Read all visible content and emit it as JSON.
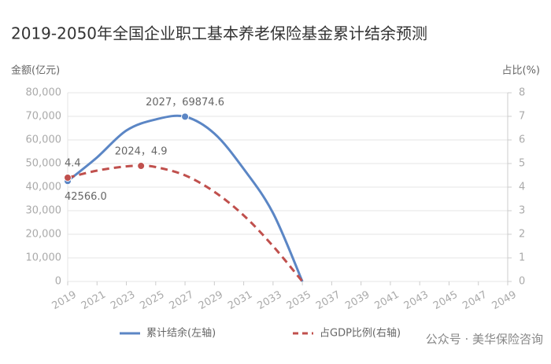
{
  "chart_data": {
    "type": "line",
    "title": "2019-2050年全国企业职工基本养老保险基金累计结余预测",
    "ylabel": "金额(亿元)",
    "y2label": "占比(%)",
    "xlim": [
      2019,
      2049
    ],
    "xticks": [
      2019,
      2021,
      2023,
      2025,
      2027,
      2029,
      2031,
      2033,
      2035,
      2037,
      2039,
      2041,
      2043,
      2045,
      2047,
      2049
    ],
    "ylim": [
      0,
      80000
    ],
    "yticks": [
      0,
      {
        "value": 10000,
        "label": "10,000"
      },
      {
        "value": 20000,
        "label": "20,000"
      },
      {
        "value": 30000,
        "label": "30,000"
      },
      {
        "value": 40000,
        "label": "40,000"
      },
      {
        "value": 50000,
        "label": "50,000"
      },
      {
        "value": 60000,
        "label": "60,000"
      },
      {
        "value": 70000,
        "label": "70,000"
      },
      {
        "value": 80000,
        "label": "80,000"
      }
    ],
    "y2lim": [
      0,
      8
    ],
    "y2ticks": [
      0,
      1,
      2,
      3,
      4,
      5,
      6,
      7,
      8
    ],
    "grid": true,
    "legend": "bottom",
    "series": [
      {
        "name": "累计结余(左轴)",
        "color": "#5b86c5",
        "dash": false,
        "x": [
          2019,
          2021,
          2023,
          2025,
          2027,
          2029,
          2031,
          2033,
          2035
        ],
        "values": [
          42566,
          52600,
          64000,
          68700,
          69874.6,
          62700,
          47700,
          29000,
          0
        ],
        "value_labels": [
          "42566.0",
          null,
          null,
          null,
          "2027，69874.6",
          null,
          null,
          null,
          null
        ]
      },
      {
        "name": "占GDP比例(右轴)",
        "color": "#c0504d",
        "dash": true,
        "axis": "y2",
        "x": [
          2019,
          2021,
          2023,
          2024,
          2025,
          2027,
          2029,
          2031,
          2033,
          2035
        ],
        "values": [
          4.4,
          4.7,
          4.88,
          4.9,
          4.85,
          4.5,
          3.8,
          2.8,
          1.5,
          0
        ],
        "value_labels": [
          "4.4",
          null,
          null,
          "2024，4.9",
          null,
          null,
          null,
          null,
          null,
          null
        ]
      }
    ],
    "watermark": "公众号 · 美华保险咨询"
  }
}
